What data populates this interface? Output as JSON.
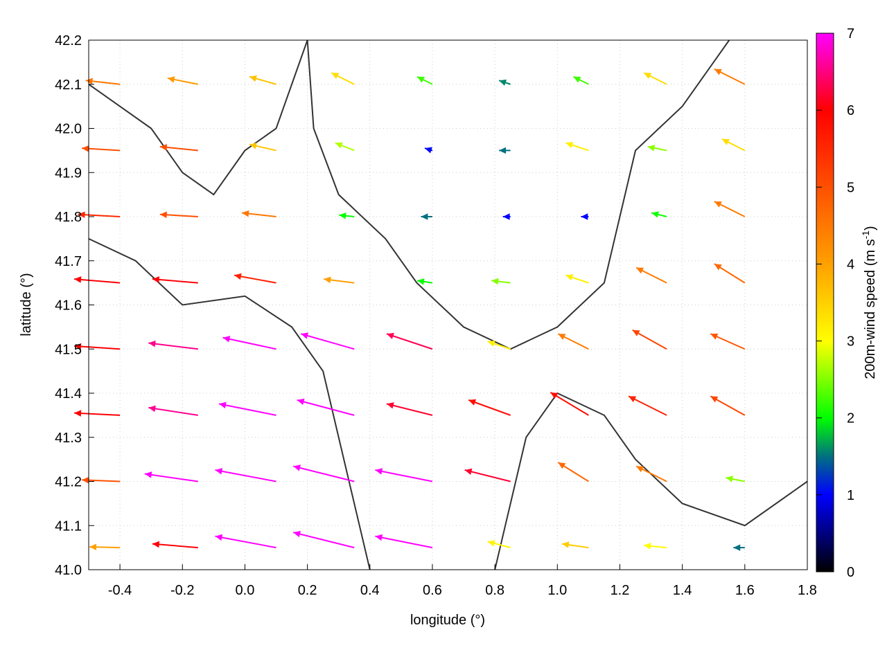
{
  "chart_data": {
    "type": "vector-field",
    "xlabel": "longitude (°)",
    "ylabel": "latitude (°)",
    "xlim": [
      -0.5,
      1.8
    ],
    "ylim": [
      41.0,
      42.2
    ],
    "xticks": [
      "-0.4",
      "-0.2",
      "0.0",
      "0.2",
      "0.4",
      "0.6",
      "0.8",
      "1.0",
      "1.2",
      "1.4",
      "1.6",
      "1.8"
    ],
    "yticks": [
      "41.0",
      "41.1",
      "41.2",
      "41.3",
      "41.4",
      "41.5",
      "41.6",
      "41.7",
      "41.8",
      "41.9",
      "42.0",
      "42.1",
      "42.2"
    ],
    "grid": true,
    "colorbar": {
      "label": "200m-wind speed (m s",
      "label_sup": "-1",
      "label_end": ")",
      "range": [
        0,
        7
      ],
      "ticks": [
        "0",
        "1",
        "2",
        "3",
        "4",
        "5",
        "6",
        "7"
      ],
      "palette": [
        {
          "v": 0,
          "c": "#000000"
        },
        {
          "v": 1,
          "c": "#0000ff"
        },
        {
          "v": 1.5,
          "c": "#007080"
        },
        {
          "v": 2,
          "c": "#00ff00"
        },
        {
          "v": 3,
          "c": "#ffff00"
        },
        {
          "v": 4,
          "c": "#ffa000"
        },
        {
          "v": 5,
          "c": "#ff5000"
        },
        {
          "v": 6,
          "c": "#ff0000"
        },
        {
          "v": 7,
          "c": "#ff00ff"
        }
      ]
    },
    "grid_lon": [
      -0.4,
      -0.15,
      0.1,
      0.35,
      0.6,
      0.85,
      1.1,
      1.35,
      1.6
    ],
    "grid_lat": [
      42.1,
      41.95,
      41.8,
      41.65,
      41.5,
      41.35,
      41.2,
      41.05
    ],
    "wind_uv": [
      [
        [
          -4.5,
          0.5
        ],
        [
          -4,
          0.8
        ],
        [
          -3.5,
          1
        ],
        [
          -3,
          1.5
        ],
        [
          -2,
          1
        ],
        [
          -1.5,
          0.5
        ],
        [
          -2,
          1
        ],
        [
          -3,
          1.5
        ],
        [
          -4,
          2
        ]
      ],
      [
        [
          -5,
          0.3
        ],
        [
          -5,
          0.5
        ],
        [
          -3.5,
          0.8
        ],
        [
          -2.5,
          1
        ],
        [
          -1,
          0.3
        ],
        [
          -1.5,
          0
        ],
        [
          -3,
          1
        ],
        [
          -2.5,
          0.5
        ],
        [
          -3,
          1.5
        ]
      ],
      [
        [
          -5.5,
          0.3
        ],
        [
          -5,
          0.3
        ],
        [
          -4.5,
          0.5
        ],
        [
          -2,
          0.2
        ],
        [
          -1.5,
          0
        ],
        [
          -1,
          0
        ],
        [
          -1,
          0
        ],
        [
          -2,
          0.5
        ],
        [
          -4,
          2
        ]
      ],
      [
        [
          -6,
          0.5
        ],
        [
          -6,
          0.5
        ],
        [
          -5.5,
          1
        ],
        [
          -4,
          0.5
        ],
        [
          -2,
          0.3
        ],
        [
          -2.5,
          0.3
        ],
        [
          -3,
          1
        ],
        [
          -4,
          2
        ],
        [
          -4,
          2.5
        ]
      ],
      [
        [
          -6,
          0.4
        ],
        [
          -6.5,
          0.8
        ],
        [
          -7,
          1.5
        ],
        [
          -7,
          2
        ],
        [
          -6,
          2
        ],
        [
          -3,
          1
        ],
        [
          -4,
          2
        ],
        [
          -4.5,
          2.5
        ],
        [
          -4.5,
          2
        ]
      ],
      [
        [
          -6,
          0.3
        ],
        [
          -6.5,
          1
        ],
        [
          -7.5,
          1.5
        ],
        [
          -7.5,
          2
        ],
        [
          -6,
          1.5
        ],
        [
          -5.5,
          2
        ],
        [
          -5,
          3
        ],
        [
          -5,
          2.5
        ],
        [
          -4.5,
          2.5
        ]
      ],
      [
        [
          -5,
          0.2
        ],
        [
          -7,
          1
        ],
        [
          -8,
          1.5
        ],
        [
          -8,
          2
        ],
        [
          -7.5,
          1.5
        ],
        [
          -6,
          1.5
        ],
        [
          -4,
          2.5
        ],
        [
          -4,
          2
        ],
        [
          -2.5,
          0.5
        ]
      ],
      [
        [
          -4,
          0.1
        ],
        [
          -6,
          0.5
        ],
        [
          -8,
          1.5
        ],
        [
          -8,
          2
        ],
        [
          -7.5,
          1.5
        ],
        [
          -3,
          0.8
        ],
        [
          -3.5,
          0.5
        ],
        [
          -3,
          0.3
        ],
        [
          -1.5,
          0
        ]
      ]
    ],
    "contours": [
      [
        [
          -0.5,
          41.75
        ],
        [
          -0.35,
          41.7
        ],
        [
          -0.2,
          41.6
        ],
        [
          0.0,
          41.62
        ],
        [
          0.15,
          41.55
        ],
        [
          0.25,
          41.45
        ],
        [
          0.3,
          41.3
        ],
        [
          0.35,
          41.15
        ],
        [
          0.4,
          41.0
        ]
      ],
      [
        [
          0.2,
          42.2
        ],
        [
          0.22,
          42.0
        ],
        [
          0.3,
          41.85
        ],
        [
          0.45,
          41.75
        ],
        [
          0.55,
          41.65
        ],
        [
          0.7,
          41.55
        ],
        [
          0.85,
          41.5
        ],
        [
          1.0,
          41.55
        ],
        [
          1.15,
          41.65
        ],
        [
          1.2,
          41.8
        ],
        [
          1.25,
          41.95
        ],
        [
          1.4,
          42.05
        ],
        [
          1.55,
          42.2
        ]
      ],
      [
        [
          0.8,
          41.0
        ],
        [
          0.85,
          41.15
        ],
        [
          0.9,
          41.3
        ],
        [
          1.0,
          41.4
        ],
        [
          1.15,
          41.35
        ],
        [
          1.25,
          41.25
        ],
        [
          1.4,
          41.15
        ],
        [
          1.6,
          41.1
        ],
        [
          1.8,
          41.2
        ]
      ],
      [
        [
          -0.5,
          42.1
        ],
        [
          -0.3,
          42.0
        ],
        [
          -0.2,
          41.9
        ],
        [
          -0.1,
          41.85
        ],
        [
          0.0,
          41.95
        ],
        [
          0.1,
          42.0
        ],
        [
          0.15,
          42.1
        ],
        [
          0.2,
          42.2
        ]
      ]
    ]
  }
}
